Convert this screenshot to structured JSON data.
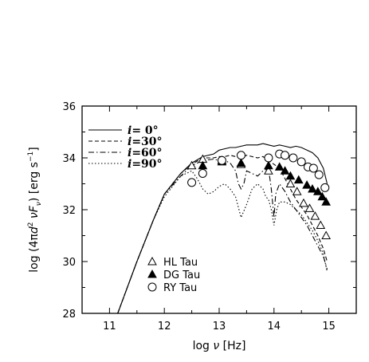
{
  "chart_data": {
    "type": "line",
    "xlabel_parts": [
      "log ",
      "ν",
      " [Hz]"
    ],
    "ylabel_parts": [
      "log (4π",
      "d",
      "2",
      " ν",
      "F",
      "ν",
      ") [erg s",
      "−1",
      "]"
    ],
    "xlim": [
      10.5,
      15.5
    ],
    "ylim": [
      28,
      36
    ],
    "xticks": [
      11,
      12,
      13,
      14,
      15
    ],
    "yticks": [
      28,
      30,
      32,
      34,
      36
    ],
    "grid": false,
    "legend_lines_position": "top-left",
    "legend_markers_position": "bottom-center",
    "series": [
      {
        "legend_prefix": "i",
        "legend_value": "=  0°",
        "style": "solid",
        "x": [
          11.15,
          11.5,
          11.8,
          12.0,
          12.3,
          12.5,
          12.7,
          12.9,
          13.0,
          13.1,
          13.2,
          13.3,
          13.4,
          13.5,
          13.6,
          13.7,
          13.8,
          13.9,
          14.0,
          14.1,
          14.2,
          14.3,
          14.4,
          14.5,
          14.6,
          14.7,
          14.8,
          14.9,
          14.97
        ],
        "y": [
          28.0,
          30.0,
          31.6,
          32.6,
          33.4,
          33.8,
          34.05,
          34.15,
          34.3,
          34.35,
          34.4,
          34.4,
          34.45,
          34.5,
          34.5,
          34.5,
          34.55,
          34.5,
          34.45,
          34.5,
          34.45,
          34.4,
          34.45,
          34.4,
          34.3,
          34.2,
          34.0,
          33.6,
          33.0
        ]
      },
      {
        "legend_prefix": "i",
        "legend_value": "=30°",
        "style": "dashed",
        "x": [
          11.15,
          11.5,
          11.8,
          12.0,
          12.3,
          12.5,
          12.7,
          12.9,
          13.0,
          13.1,
          13.2,
          13.3,
          13.4,
          13.5,
          13.6,
          13.7,
          13.8,
          13.9,
          14.0,
          14.1,
          14.2,
          14.3,
          14.4,
          14.5,
          14.6,
          14.7,
          14.8,
          14.9,
          14.97
        ],
        "y": [
          28.0,
          30.0,
          31.6,
          32.6,
          33.4,
          33.75,
          34.0,
          34.0,
          34.05,
          34.05,
          34.1,
          34.05,
          34.0,
          34.1,
          34.05,
          34.0,
          34.05,
          33.9,
          33.75,
          33.6,
          33.2,
          32.8,
          32.4,
          32.1,
          31.8,
          31.4,
          31.0,
          30.5,
          30.0
        ]
      },
      {
        "legend_prefix": "i",
        "legend_value": "=60°",
        "style": "dashdot",
        "x": [
          11.15,
          11.5,
          11.8,
          12.0,
          12.3,
          12.5,
          12.7,
          12.9,
          13.0,
          13.1,
          13.2,
          13.3,
          13.35,
          13.4,
          13.45,
          13.5,
          13.6,
          13.7,
          13.8,
          13.9,
          13.95,
          14.0,
          14.03,
          14.1,
          14.2,
          14.3,
          14.4,
          14.5,
          14.6,
          14.7,
          14.8,
          14.9,
          14.97
        ],
        "y": [
          28.0,
          30.0,
          31.6,
          32.6,
          33.3,
          33.7,
          33.9,
          33.95,
          33.9,
          33.9,
          33.8,
          33.5,
          33.0,
          32.8,
          33.0,
          33.5,
          33.4,
          33.3,
          33.5,
          33.6,
          32.8,
          31.7,
          32.6,
          33.0,
          32.7,
          32.3,
          32.0,
          31.7,
          31.4,
          31.0,
          30.6,
          30.2,
          29.7
        ]
      },
      {
        "legend_prefix": "i",
        "legend_value": "=90°",
        "style": "dotted",
        "x": [
          11.15,
          11.5,
          11.8,
          12.0,
          12.3,
          12.5,
          12.6,
          12.7,
          12.8,
          12.9,
          13.0,
          13.1,
          13.2,
          13.3,
          13.4,
          13.5,
          13.6,
          13.7,
          13.8,
          13.85,
          13.9,
          13.95,
          14.0,
          14.05,
          14.1,
          14.2,
          14.3,
          14.4,
          14.5,
          14.6,
          14.7,
          14.8,
          14.9,
          14.97
        ],
        "y": [
          28.0,
          30.0,
          31.6,
          32.5,
          33.3,
          33.5,
          33.2,
          32.8,
          32.6,
          32.7,
          32.9,
          33.0,
          32.8,
          32.5,
          31.7,
          32.2,
          32.8,
          33.0,
          32.8,
          32.5,
          32.4,
          32.0,
          31.4,
          32.0,
          32.3,
          32.3,
          32.2,
          32.0,
          31.8,
          31.5,
          31.2,
          30.8,
          30.3,
          29.6
        ]
      }
    ],
    "observations": [
      {
        "name": "HL Tau",
        "marker": "triangle-open",
        "x": [
          12.5,
          12.7,
          13.05,
          13.4,
          13.9,
          14.3,
          14.42,
          14.54,
          14.65,
          14.75,
          14.85,
          14.95
        ],
        "y": [
          33.7,
          33.95,
          33.9,
          33.75,
          33.5,
          33.0,
          32.7,
          32.25,
          32.05,
          31.75,
          31.4,
          31.0
        ]
      },
      {
        "name": "DG Tau",
        "marker": "triangle-filled",
        "x": [
          12.7,
          13.05,
          13.4,
          13.9,
          14.1,
          14.2,
          14.3,
          14.45,
          14.6,
          14.7,
          14.8,
          14.88,
          14.95
        ],
        "y": [
          33.7,
          33.85,
          33.8,
          33.7,
          33.65,
          33.5,
          33.3,
          33.15,
          32.95,
          32.8,
          32.7,
          32.5,
          32.3
        ]
      },
      {
        "name": "RY Tau",
        "marker": "circle-open",
        "x": [
          12.5,
          12.7,
          13.05,
          13.4,
          13.9,
          14.1,
          14.2,
          14.35,
          14.5,
          14.62,
          14.72,
          14.82,
          14.93
        ],
        "y": [
          33.05,
          33.4,
          33.9,
          34.1,
          34.0,
          34.15,
          34.1,
          34.0,
          33.85,
          33.65,
          33.6,
          33.35,
          32.85
        ]
      }
    ]
  }
}
